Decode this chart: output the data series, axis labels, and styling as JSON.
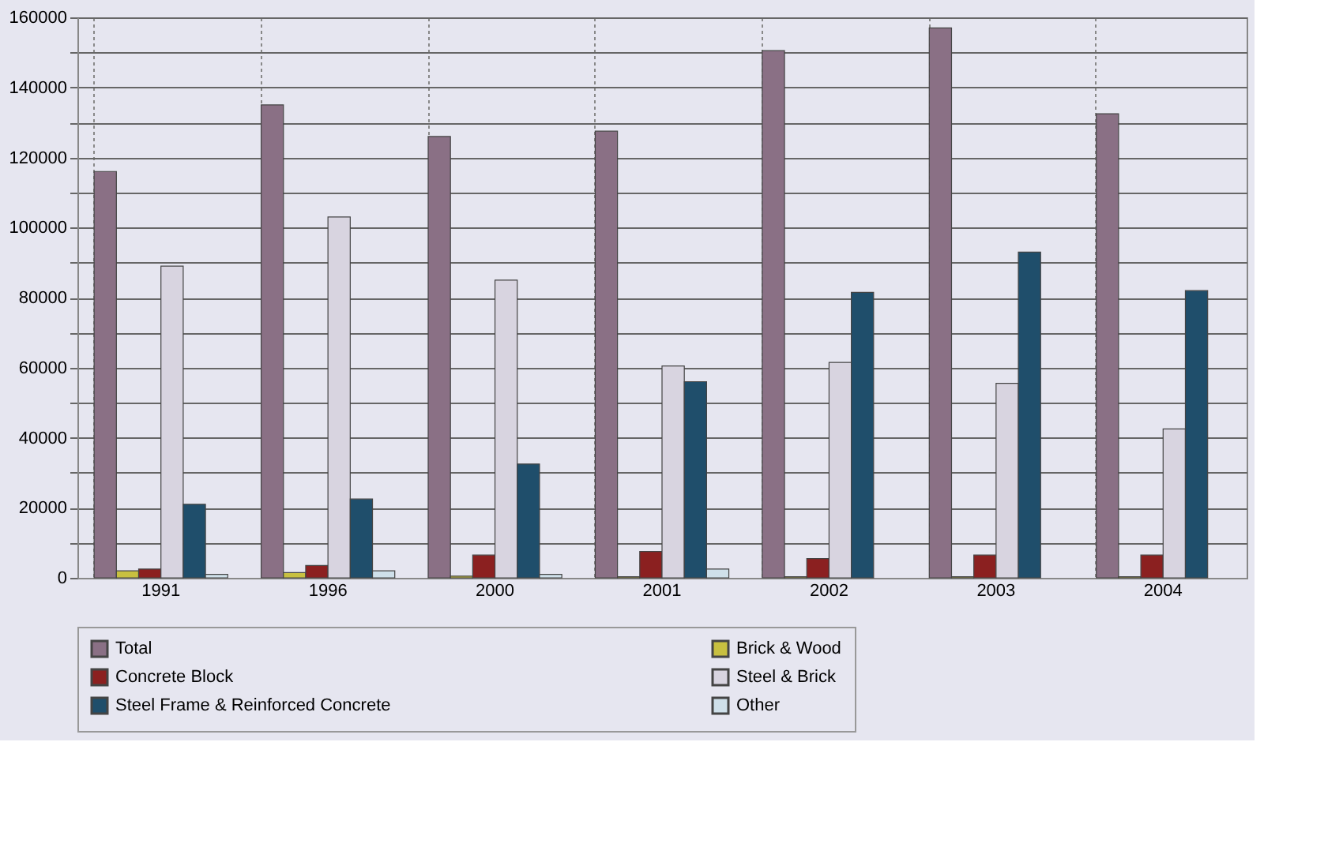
{
  "chart_data": {
    "type": "bar",
    "categories": [
      "1991",
      "1996",
      "2000",
      "2001",
      "2002",
      "2003",
      "2004"
    ],
    "series": [
      {
        "name": "Total",
        "color": "#8a7085",
        "values": [
          116000,
          135000,
          126000,
          127500,
          150500,
          157000,
          132500
        ]
      },
      {
        "name": "Brick & Wood",
        "color": "#c8c040",
        "values": [
          2000,
          1500,
          500,
          300,
          300,
          300,
          300
        ]
      },
      {
        "name": "Concrete Block",
        "color": "#8b2020",
        "values": [
          2500,
          3500,
          6500,
          7500,
          5500,
          6500,
          6500
        ]
      },
      {
        "name": "Steel & Brick",
        "color": "#d8d4e0",
        "values": [
          89000,
          103000,
          85000,
          60500,
          61500,
          55500,
          42500
        ]
      },
      {
        "name": "Steel Frame & Reinforced Concrete",
        "color": "#1f4e6b",
        "values": [
          21000,
          22500,
          32500,
          56000,
          81500,
          93000,
          82000
        ]
      },
      {
        "name": "Other",
        "color": "#cfe0ea",
        "values": [
          1000,
          2000,
          1000,
          2500,
          null,
          null,
          null
        ]
      }
    ],
    "ylim": [
      0,
      160000
    ],
    "yticks": [
      0,
      {
        "value": 10000,
        "label": null
      },
      20000,
      {
        "value": 30000,
        "label": null
      },
      40000,
      {
        "value": 50000,
        "label": null
      },
      60000,
      {
        "value": 70000,
        "label": null
      },
      80000,
      {
        "value": 90000,
        "label": null
      },
      100000,
      {
        "value": 110000,
        "label": null
      },
      120000,
      {
        "value": 130000,
        "label": null
      },
      140000,
      {
        "value": 150000,
        "label": null
      },
      160000
    ],
    "grid": true,
    "legend": "bottom"
  }
}
